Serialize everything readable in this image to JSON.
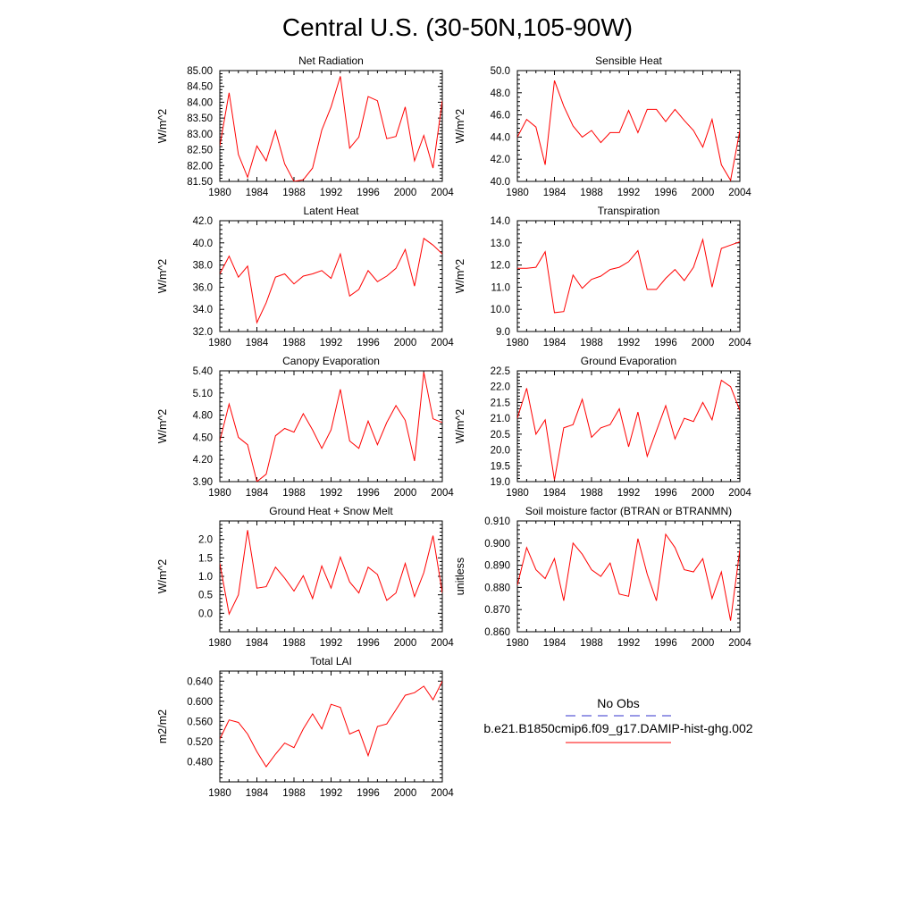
{
  "figure": {
    "title": "Central U.S. (30-50N,105-90W)"
  },
  "legend": {
    "obs_label": "No Obs",
    "obs_color": "#3333cc",
    "model_label": "b.e21.B1850cmip6.f09_g17.DAMIP-hist-ghg.002",
    "model_color": "#ff0000"
  },
  "chart_data": [
    {
      "type": "line",
      "title": "Net Radiation",
      "ylabel": "W/m^2",
      "xlim": [
        1980,
        2004
      ],
      "ylim": [
        81.5,
        85.0
      ],
      "yticks": [
        "81.50",
        "82.00",
        "82.50",
        "83.00",
        "83.50",
        "84.00",
        "84.50",
        "85.00"
      ],
      "xticks": [
        "1980",
        "1984",
        "1988",
        "1992",
        "1996",
        "2000",
        "2004"
      ],
      "series": [
        {
          "x": [
            1980,
            1981,
            1982,
            1983,
            1984,
            1985,
            1986,
            1987,
            1988,
            1989,
            1990,
            1991,
            1992,
            1993,
            1994,
            1995,
            1996,
            1997,
            1998,
            1999,
            2000,
            2001,
            2002,
            2003,
            2004
          ],
          "values": [
            82.62,
            84.3,
            82.35,
            81.63,
            82.62,
            82.15,
            83.1,
            82.05,
            81.5,
            81.55,
            81.92,
            83.12,
            83.85,
            84.82,
            82.55,
            82.9,
            84.18,
            84.05,
            82.85,
            82.92,
            83.85,
            82.15,
            82.95,
            81.92,
            84.05
          ]
        }
      ]
    },
    {
      "type": "line",
      "title": "Sensible Heat",
      "ylabel": "W/m^2",
      "xlim": [
        1980,
        2004
      ],
      "ylim": [
        40.0,
        50.0
      ],
      "yticks": [
        "40.0",
        "42.0",
        "44.0",
        "46.0",
        "48.0",
        "50.0"
      ],
      "xticks": [
        "1980",
        "1984",
        "1988",
        "1992",
        "1996",
        "2000",
        "2004"
      ],
      "series": [
        {
          "x": [
            1980,
            1981,
            1982,
            1983,
            1984,
            1985,
            1986,
            1987,
            1988,
            1989,
            1990,
            1991,
            1992,
            1993,
            1994,
            1995,
            1996,
            1997,
            1998,
            1999,
            2000,
            2001,
            2002,
            2003,
            2004
          ],
          "values": [
            44.0,
            45.6,
            44.9,
            41.5,
            49.1,
            46.8,
            45.0,
            44.0,
            44.6,
            43.5,
            44.4,
            44.4,
            46.4,
            44.4,
            46.5,
            46.5,
            45.4,
            46.5,
            45.5,
            44.6,
            43.1,
            45.6,
            41.5,
            40.1,
            44.6
          ]
        }
      ]
    },
    {
      "type": "line",
      "title": "Latent Heat",
      "ylabel": "W/m^2",
      "xlim": [
        1980,
        2004
      ],
      "ylim": [
        32.0,
        42.0
      ],
      "yticks": [
        "32.0",
        "34.0",
        "36.0",
        "38.0",
        "40.0",
        "42.0"
      ],
      "xticks": [
        "1980",
        "1984",
        "1988",
        "1992",
        "1996",
        "2000",
        "2004"
      ],
      "series": [
        {
          "x": [
            1980,
            1981,
            1982,
            1983,
            1984,
            1985,
            1986,
            1987,
            1988,
            1989,
            1990,
            1991,
            1992,
            1993,
            1994,
            1995,
            1996,
            1997,
            1998,
            1999,
            2000,
            2001,
            2002,
            2003,
            2004
          ],
          "values": [
            37.2,
            38.8,
            36.9,
            37.9,
            32.8,
            34.6,
            36.9,
            37.2,
            36.3,
            37.0,
            37.2,
            37.5,
            36.8,
            39.0,
            35.2,
            35.8,
            37.5,
            36.5,
            37.0,
            37.7,
            39.4,
            36.1,
            40.4,
            39.8,
            39.0
          ]
        }
      ]
    },
    {
      "type": "line",
      "title": "Transpiration",
      "ylabel": "W/m^2",
      "xlim": [
        1980,
        2004
      ],
      "ylim": [
        9.0,
        14.0
      ],
      "yticks": [
        "9.0",
        "10.0",
        "11.0",
        "12.0",
        "13.0",
        "14.0"
      ],
      "xticks": [
        "1980",
        "1984",
        "1988",
        "1992",
        "1996",
        "2000",
        "2004"
      ],
      "series": [
        {
          "x": [
            1980,
            1981,
            1982,
            1983,
            1984,
            1985,
            1986,
            1987,
            1988,
            1989,
            1990,
            1991,
            1992,
            1993,
            1994,
            1995,
            1996,
            1997,
            1998,
            1999,
            2000,
            2001,
            2002,
            2003,
            2004
          ],
          "values": [
            11.85,
            11.85,
            11.9,
            12.6,
            9.85,
            9.9,
            11.55,
            10.95,
            11.35,
            11.5,
            11.8,
            11.9,
            12.15,
            12.65,
            10.9,
            10.9,
            11.4,
            11.8,
            11.3,
            11.9,
            13.15,
            11.0,
            12.75,
            12.9,
            13.05
          ]
        }
      ]
    },
    {
      "type": "line",
      "title": "Canopy Evaporation",
      "ylabel": "W/m^2",
      "xlim": [
        1980,
        2004
      ],
      "ylim": [
        3.9,
        5.4
      ],
      "yticks": [
        "3.90",
        "4.20",
        "4.50",
        "4.80",
        "5.10",
        "5.40"
      ],
      "xticks": [
        "1980",
        "1984",
        "1988",
        "1992",
        "1996",
        "2000",
        "2004"
      ],
      "series": [
        {
          "x": [
            1980,
            1981,
            1982,
            1983,
            1984,
            1985,
            1986,
            1987,
            1988,
            1989,
            1990,
            1991,
            1992,
            1993,
            1994,
            1995,
            1996,
            1997,
            1998,
            1999,
            2000,
            2001,
            2002,
            2003,
            2004
          ],
          "values": [
            4.45,
            4.95,
            4.5,
            4.4,
            3.9,
            4.0,
            4.52,
            4.62,
            4.57,
            4.82,
            4.6,
            4.35,
            4.6,
            5.15,
            4.45,
            4.35,
            4.72,
            4.4,
            4.7,
            4.93,
            4.73,
            4.18,
            5.38,
            4.75,
            4.7
          ]
        }
      ]
    },
    {
      "type": "line",
      "title": "Ground Evaporation",
      "ylabel": "W/m^2",
      "xlim": [
        1980,
        2004
      ],
      "ylim": [
        19.0,
        22.5
      ],
      "yticks": [
        "19.0",
        "19.5",
        "20.0",
        "20.5",
        "21.0",
        "21.5",
        "22.0",
        "22.5"
      ],
      "xticks": [
        "1980",
        "1984",
        "1988",
        "1992",
        "1996",
        "2000",
        "2004"
      ],
      "series": [
        {
          "x": [
            1980,
            1981,
            1982,
            1983,
            1984,
            1985,
            1986,
            1987,
            1988,
            1989,
            1990,
            1991,
            1992,
            1993,
            1994,
            1995,
            1996,
            1997,
            1998,
            1999,
            2000,
            2001,
            2002,
            2003,
            2004
          ],
          "values": [
            21.0,
            21.95,
            20.5,
            20.95,
            19.05,
            20.7,
            20.8,
            21.6,
            20.4,
            20.7,
            20.8,
            21.3,
            20.1,
            21.2,
            19.8,
            20.6,
            21.4,
            20.35,
            21.0,
            20.9,
            21.5,
            20.95,
            22.2,
            22.0,
            21.25
          ]
        }
      ]
    },
    {
      "type": "line",
      "title": "Ground Heat + Snow Melt",
      "ylabel": "W/m^2",
      "xlim": [
        1980,
        2004
      ],
      "ylim": [
        -0.5,
        2.5
      ],
      "yticks": [
        "0.0",
        "0.5",
        "1.0",
        "1.5",
        "2.0"
      ],
      "xticks": [
        "1980",
        "1984",
        "1988",
        "1992",
        "1996",
        "2000",
        "2004"
      ],
      "series": [
        {
          "x": [
            1980,
            1981,
            1982,
            1983,
            1984,
            1985,
            1986,
            1987,
            1988,
            1989,
            1990,
            1991,
            1992,
            1993,
            1994,
            1995,
            1996,
            1997,
            1998,
            1999,
            2000,
            2001,
            2002,
            2003,
            2004
          ],
          "values": [
            1.35,
            -0.02,
            0.5,
            2.25,
            0.68,
            0.72,
            1.25,
            0.95,
            0.6,
            1.02,
            0.4,
            1.28,
            0.68,
            1.52,
            0.85,
            0.55,
            1.25,
            1.05,
            0.35,
            0.55,
            1.35,
            0.45,
            1.1,
            2.1,
            0.55
          ]
        }
      ]
    },
    {
      "type": "line",
      "title": "Soil moisture factor (BTRAN or BTRANMN)",
      "ylabel": "unitless",
      "xlim": [
        1980,
        2004
      ],
      "ylim": [
        0.86,
        0.91
      ],
      "yticks": [
        "0.860",
        "0.870",
        "0.880",
        "0.890",
        "0.900",
        "0.910"
      ],
      "xticks": [
        "1980",
        "1984",
        "1988",
        "1992",
        "1996",
        "2000",
        "2004"
      ],
      "series": [
        {
          "x": [
            1980,
            1981,
            1982,
            1983,
            1984,
            1985,
            1986,
            1987,
            1988,
            1989,
            1990,
            1991,
            1992,
            1993,
            1994,
            1995,
            1996,
            1997,
            1998,
            1999,
            2000,
            2001,
            2002,
            2003,
            2004
          ],
          "values": [
            0.881,
            0.898,
            0.888,
            0.884,
            0.893,
            0.874,
            0.9,
            0.895,
            0.888,
            0.885,
            0.891,
            0.877,
            0.876,
            0.902,
            0.886,
            0.874,
            0.904,
            0.898,
            0.888,
            0.887,
            0.893,
            0.875,
            0.887,
            0.865,
            0.897
          ]
        }
      ]
    },
    {
      "type": "line",
      "title": "Total LAI",
      "ylabel": "m2/m2",
      "xlim": [
        1980,
        2004
      ],
      "ylim": [
        0.44,
        0.66
      ],
      "yticks": [
        "0.480",
        "0.520",
        "0.560",
        "0.600",
        "0.640"
      ],
      "xticks": [
        "1980",
        "1984",
        "1988",
        "1992",
        "1996",
        "2000",
        "2004"
      ],
      "series": [
        {
          "x": [
            1980,
            1981,
            1982,
            1983,
            1984,
            1985,
            1986,
            1987,
            1988,
            1989,
            1990,
            1991,
            1992,
            1993,
            1994,
            1995,
            1996,
            1997,
            1998,
            1999,
            2000,
            2001,
            2002,
            2003,
            2004
          ],
          "values": [
            0.525,
            0.563,
            0.558,
            0.535,
            0.5,
            0.47,
            0.495,
            0.517,
            0.508,
            0.545,
            0.575,
            0.545,
            0.594,
            0.588,
            0.535,
            0.543,
            0.492,
            0.55,
            0.555,
            0.583,
            0.612,
            0.617,
            0.63,
            0.603,
            0.64
          ]
        }
      ]
    }
  ]
}
